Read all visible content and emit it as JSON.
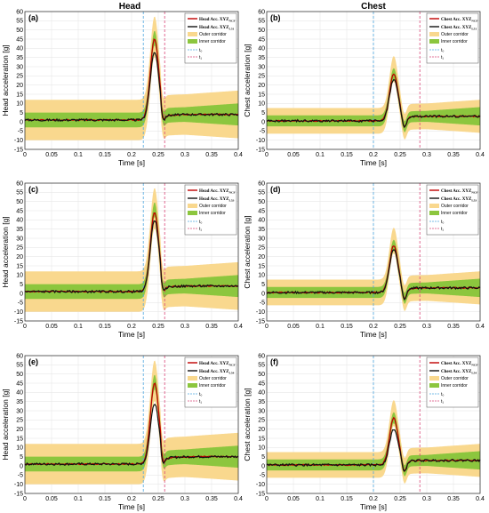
{
  "columns": [
    "Head",
    "Chest"
  ],
  "colors": {
    "outer": "#f9d88e",
    "inner": "#8cc63e",
    "mean": "#111111",
    "red": "#c00000",
    "t0": "#4da6e0",
    "t1": "#d9477a",
    "grid": "#e6e6e6"
  },
  "chart_data": [
    {
      "type": "line",
      "panel": "(a)",
      "col": 0,
      "row": 0,
      "ylabel": "Head acceleration [g]",
      "xlabel": "Time [s]",
      "xlim": [
        0,
        0.4
      ],
      "ylim": [
        -15,
        60
      ],
      "xticks": [
        "0",
        "0.05",
        "0.1",
        "0.15",
        "0.2",
        "0.25",
        "0.3",
        "0.35",
        "0.4"
      ],
      "yticks": [
        "-15",
        "-10",
        "-5",
        "0",
        "5",
        "10",
        "15",
        "20",
        "25",
        "30",
        "35",
        "40",
        "45",
        "50",
        "55",
        "60"
      ],
      "t0": 0.222,
      "t1": 0.262,
      "grid": true,
      "legend_position": "top-right",
      "legend": {
        "red": "Head Acc. XYZ",
        "red_sub": "NCF",
        "black": "Head Acc. XYZ",
        "black_sub": "L51",
        "outer": "Outer corridor",
        "inner": "Inner corridor",
        "t0": "t₀",
        "t1": "t₁"
      },
      "profile": {
        "pre": 1,
        "peak_t": 0.243,
        "peak_red": 45,
        "peak_black": 38,
        "outer_peak": 53,
        "inner_peak": 48,
        "post": 4,
        "outer_half": 11,
        "inner_half": 4
      }
    },
    {
      "type": "line",
      "panel": "(b)",
      "col": 1,
      "row": 0,
      "ylabel": "Chest acceleration [g]",
      "xlabel": "Time [s]",
      "xlim": [
        0,
        0.4
      ],
      "ylim": [
        -15,
        60
      ],
      "xticks": [
        "0",
        "0.05",
        "0.1",
        "0.15",
        "0.2",
        "0.25",
        "0.3",
        "0.35",
        "0.4"
      ],
      "yticks": [
        "-15",
        "-10",
        "-5",
        "0",
        "5",
        "10",
        "15",
        "20",
        "25",
        "30",
        "35",
        "40",
        "45",
        "50",
        "55",
        "60"
      ],
      "t0": 0.2,
      "t1": 0.287,
      "grid": true,
      "legend_position": "top-right",
      "legend": {
        "red": "Chest Acc. XYZ",
        "red_sub": "NCF",
        "black": "Chest Acc. XYZ",
        "black_sub": "L51",
        "outer": "Outer corridor",
        "inner": "Inner corridor",
        "t0": "t₀",
        "t1": "t₁"
      },
      "profile": {
        "pre": 0.5,
        "peak_t": 0.238,
        "peak_red": 26,
        "peak_black": 23,
        "outer_peak": 33,
        "inner_peak": 28,
        "post": 3,
        "outer_half": 7,
        "inner_half": 3
      }
    },
    {
      "type": "line",
      "panel": "(c)",
      "col": 0,
      "row": 1,
      "ylabel": "Head acceleration [g]",
      "xlabel": "Time [s]",
      "xlim": [
        0,
        0.4
      ],
      "ylim": [
        -15,
        60
      ],
      "xticks": [
        "0",
        "0.05",
        "0.1",
        "0.15",
        "0.2",
        "0.25",
        "0.3",
        "0.35",
        "0.4"
      ],
      "yticks": [
        "-15",
        "-10",
        "-5",
        "0",
        "5",
        "10",
        "15",
        "20",
        "25",
        "30",
        "35",
        "40",
        "45",
        "50",
        "55",
        "60"
      ],
      "t0": 0.222,
      "t1": 0.262,
      "grid": true,
      "legend_position": "top-right",
      "legend": {
        "red": "Head Acc. XYZ",
        "red_sub": "NCF",
        "black": "Head Acc. XYZ",
        "black_sub": "L53",
        "outer": "Outer corridor",
        "inner": "Inner corridor",
        "t0": "t₀",
        "t1": "t₁"
      },
      "profile": {
        "pre": 1,
        "peak_t": 0.243,
        "peak_red": 44,
        "peak_black": 40,
        "outer_peak": 53,
        "inner_peak": 48,
        "post": 4,
        "outer_half": 11,
        "inner_half": 4
      }
    },
    {
      "type": "line",
      "panel": "(d)",
      "col": 1,
      "row": 1,
      "ylabel": "Chest acceleration [g]",
      "xlabel": "Time [s]",
      "xlim": [
        0,
        0.4
      ],
      "ylim": [
        -15,
        60
      ],
      "xticks": [
        "0",
        "0.05",
        "0.1",
        "0.15",
        "0.2",
        "0.25",
        "0.3",
        "0.35",
        "0.4"
      ],
      "yticks": [
        "-15",
        "-10",
        "-5",
        "0",
        "5",
        "10",
        "15",
        "20",
        "25",
        "30",
        "35",
        "40",
        "45",
        "50",
        "55",
        "60"
      ],
      "t0": 0.2,
      "t1": 0.287,
      "grid": true,
      "legend_position": "top-right",
      "legend": {
        "red": "Chest Acc. XYZ",
        "red_sub": "NCF",
        "black": "Chest Acc. XYZ",
        "black_sub": "L53",
        "outer": "Outer corridor",
        "inner": "Inner corridor",
        "t0": "t₀",
        "t1": "t₁"
      },
      "profile": {
        "pre": 0.5,
        "peak_t": 0.238,
        "peak_red": 26,
        "peak_black": 24,
        "outer_peak": 33,
        "inner_peak": 28,
        "post": 3,
        "outer_half": 7,
        "inner_half": 3
      }
    },
    {
      "type": "line",
      "panel": "(e)",
      "col": 0,
      "row": 2,
      "ylabel": "Head acceleration [g]",
      "xlabel": "Time [s]",
      "xlim": [
        0,
        0.4
      ],
      "ylim": [
        -15,
        60
      ],
      "xticks": [
        "0",
        "0.05",
        "0.1",
        "0.15",
        "0.2",
        "0.25",
        "0.3",
        "0.35",
        "0.4"
      ],
      "yticks": [
        "-15",
        "-10",
        "-5",
        "0",
        "5",
        "10",
        "15",
        "20",
        "25",
        "30",
        "35",
        "40",
        "45",
        "50",
        "55",
        "60"
      ],
      "t0": 0.222,
      "t1": 0.262,
      "grid": true,
      "legend_position": "top-right",
      "legend": {
        "red": "Head Acc. XYZ",
        "red_sub": "NCF",
        "black": "Head Acc. XYZ",
        "black_sub": "L54",
        "outer": "Outer corridor",
        "inner": "Inner corridor",
        "t0": "t₀",
        "t1": "t₁"
      },
      "profile": {
        "pre": 1,
        "peak_t": 0.243,
        "peak_red": 45,
        "peak_black": 34,
        "outer_peak": 53,
        "inner_peak": 48,
        "post": 5,
        "outer_half": 11,
        "inner_half": 4
      }
    },
    {
      "type": "line",
      "panel": "(f)",
      "col": 1,
      "row": 2,
      "ylabel": "Chest acceleration [g]",
      "xlabel": "Time [s]",
      "xlim": [
        0,
        0.4
      ],
      "ylim": [
        -15,
        60
      ],
      "xticks": [
        "0",
        "0.05",
        "0.1",
        "0.15",
        "0.2",
        "0.25",
        "0.3",
        "0.35",
        "0.4"
      ],
      "yticks": [
        "-15",
        "-10",
        "-5",
        "0",
        "5",
        "10",
        "15",
        "20",
        "25",
        "30",
        "35",
        "40",
        "45",
        "50",
        "55",
        "60"
      ],
      "t0": 0.2,
      "t1": 0.287,
      "grid": true,
      "legend_position": "top-right",
      "legend": {
        "red": "Chest Acc. XYZ",
        "red_sub": "NCF",
        "black": "Chest Acc. XYZ",
        "black_sub": "L54",
        "outer": "Outer corridor",
        "inner": "Inner corridor",
        "t0": "t₀",
        "t1": "t₁"
      },
      "profile": {
        "pre": 0.5,
        "peak_t": 0.238,
        "peak_red": 26,
        "peak_black": 20,
        "outer_peak": 33,
        "inner_peak": 28,
        "post": 3,
        "outer_half": 7,
        "inner_half": 3
      }
    }
  ]
}
